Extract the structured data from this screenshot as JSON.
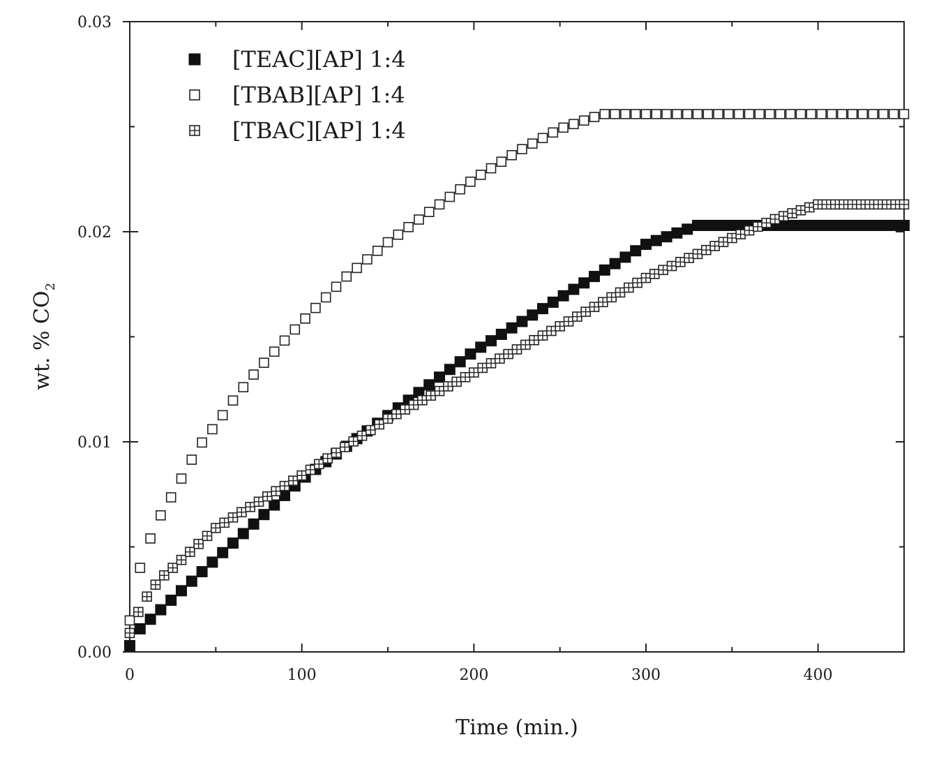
{
  "chart_data": {
    "type": "scatter",
    "title": "",
    "xlabel": "Time (min.)",
    "ylabel": "wt. % CO",
    "ylabel_subscript": "2",
    "xlim": [
      0,
      450
    ],
    "ylim": [
      0,
      0.03
    ],
    "x_ticks": [
      0,
      100,
      200,
      300,
      400
    ],
    "x_tick_labels": [
      "0",
      "100",
      "200",
      "300",
      "400"
    ],
    "y_ticks": [
      0,
      0.01,
      0.02,
      0.03
    ],
    "y_tick_labels": [
      "0.00",
      "0.01",
      "0.02",
      "0.03"
    ],
    "legend_position": "top-left",
    "grid": false,
    "series": [
      {
        "name": "[TEAC][AP] 1:4",
        "marker": "filled-square",
        "x_start": 0,
        "x_end": 450,
        "x_step": 6,
        "curve": [
          [
            0,
            0.0003
          ],
          [
            6,
            0.0011
          ],
          [
            100,
            0.0082
          ],
          [
            200,
            0.0143
          ],
          [
            300,
            0.0194
          ],
          [
            330,
            0.0203
          ],
          [
            450,
            0.0203
          ]
        ]
      },
      {
        "name": "[TBAB][AP] 1:4",
        "marker": "open-square",
        "x_start": 0,
        "x_end": 450,
        "x_step": 6,
        "curve": [
          [
            0,
            0.0015
          ],
          [
            6,
            0.004
          ],
          [
            12,
            0.0054
          ],
          [
            18,
            0.0065
          ],
          [
            25,
            0.0075
          ],
          [
            31,
            0.0084
          ],
          [
            37,
            0.0093
          ],
          [
            43,
            0.0101
          ],
          [
            50,
            0.0108
          ],
          [
            62,
            0.0122
          ],
          [
            75,
            0.0135
          ],
          [
            100,
            0.0157
          ],
          [
            125,
            0.0178
          ],
          [
            150,
            0.0195
          ],
          [
            175,
            0.021
          ],
          [
            200,
            0.0225
          ],
          [
            225,
            0.0238
          ],
          [
            250,
            0.0249
          ],
          [
            275,
            0.0256
          ],
          [
            450,
            0.0256
          ]
        ]
      },
      {
        "name": "[TBAC][AP] 1:4",
        "marker": "crossed-square",
        "x_start": 0,
        "x_end": 450,
        "x_step": 5,
        "curve": [
          [
            0,
            0.0009
          ],
          [
            6,
            0.0021
          ],
          [
            12,
            0.0029
          ],
          [
            18,
            0.0035
          ],
          [
            25,
            0.004
          ],
          [
            50,
            0.0059
          ],
          [
            100,
            0.0084
          ],
          [
            150,
            0.0111
          ],
          [
            200,
            0.0133
          ],
          [
            250,
            0.0155
          ],
          [
            300,
            0.0178
          ],
          [
            350,
            0.0197
          ],
          [
            375,
            0.0206
          ],
          [
            400,
            0.0213
          ],
          [
            450,
            0.0213
          ]
        ]
      }
    ]
  }
}
